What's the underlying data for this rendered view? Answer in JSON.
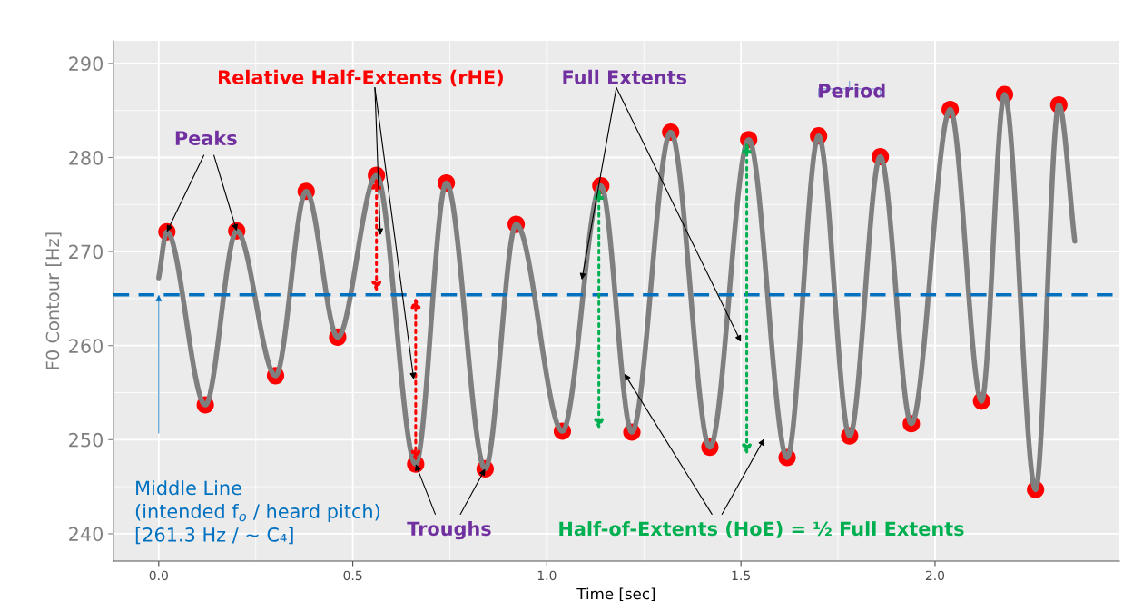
{
  "chart_data": {
    "type": "line",
    "xlabel": "Time [sec]",
    "ylabel": "F0 Contour [Hz]",
    "xlim": [
      -0.117,
      2.475
    ],
    "ylim": [
      237.1,
      292.4
    ],
    "xticks": [
      {
        "value": 0,
        "label": "0.0"
      },
      {
        "value": 0.5,
        "label": "0.5"
      },
      {
        "value": 1,
        "label": "1.0"
      },
      {
        "value": 1.5,
        "label": "1.5"
      },
      {
        "value": 2,
        "label": "2.0"
      }
    ],
    "yticks": [
      240,
      250,
      260,
      270,
      280,
      290
    ],
    "grid": true,
    "series": [
      {
        "color": "#7f7f7f",
        "line_style": "solid",
        "marker": "none",
        "x": [
          0.0,
          0.021,
          0.12,
          0.201,
          0.301,
          0.38,
          0.461,
          0.561,
          0.662,
          0.741,
          0.841,
          0.921,
          1.04,
          1.139,
          1.219,
          1.319,
          1.42,
          1.52,
          1.619,
          1.7,
          1.78,
          1.859,
          1.939,
          2.039,
          2.12,
          2.179,
          2.259,
          2.319,
          2.36
        ],
        "values": [
          267.2,
          272.1,
          253.7,
          272.2,
          256.8,
          276.4,
          260.9,
          278.1,
          247.4,
          277.3,
          246.9,
          272.9,
          250.9,
          277.0,
          250.8,
          282.7,
          249.2,
          281.9,
          248.1,
          282.3,
          250.4,
          280.1,
          251.7,
          285.1,
          254.1,
          286.7,
          244.7,
          285.6,
          271.1
        ]
      },
      {
        "type": "scatter",
        "color": "#ff0000",
        "marker": "circle",
        "x": [
          0.021,
          0.12,
          0.201,
          0.301,
          0.38,
          0.461,
          0.561,
          0.662,
          0.741,
          0.841,
          0.921,
          1.04,
          1.139,
          1.219,
          1.319,
          1.42,
          1.52,
          1.619,
          1.7,
          1.78,
          1.859,
          1.939,
          2.039,
          2.12,
          2.179,
          2.259,
          2.319
        ],
        "values": [
          272.1,
          253.7,
          272.2,
          256.8,
          276.4,
          260.9,
          278.1,
          247.4,
          277.3,
          246.9,
          272.9,
          250.9,
          277.0,
          250.8,
          282.7,
          249.2,
          281.9,
          248.1,
          282.3,
          250.4,
          280.1,
          251.7,
          285.1,
          254.1,
          286.7,
          244.7,
          285.6
        ]
      }
    ],
    "ref_lines": [
      {
        "axis": "y",
        "value": 265.4,
        "color": "#0070c0",
        "line_style": "dashed"
      }
    ],
    "annotations": [
      "Relative Half-Extents (rHE)",
      {
        "text": "Full Extents",
        "x": 1.09,
        "y": 267
      },
      "Period",
      {
        "text": "Peaks",
        "x": 0.021,
        "y": 272.1
      },
      {
        "text": "Troughs",
        "x": 0.662,
        "y": 247.4
      },
      {
        "text": "Half-of-Extents (HoE) = ½ Full Extents",
        "x": 1.2,
        "y": 257
      },
      "Middle Line\n(intended f$_{o}$ / heard pitch)\n[261.3 Hz / ~ C₄]"
    ]
  }
}
